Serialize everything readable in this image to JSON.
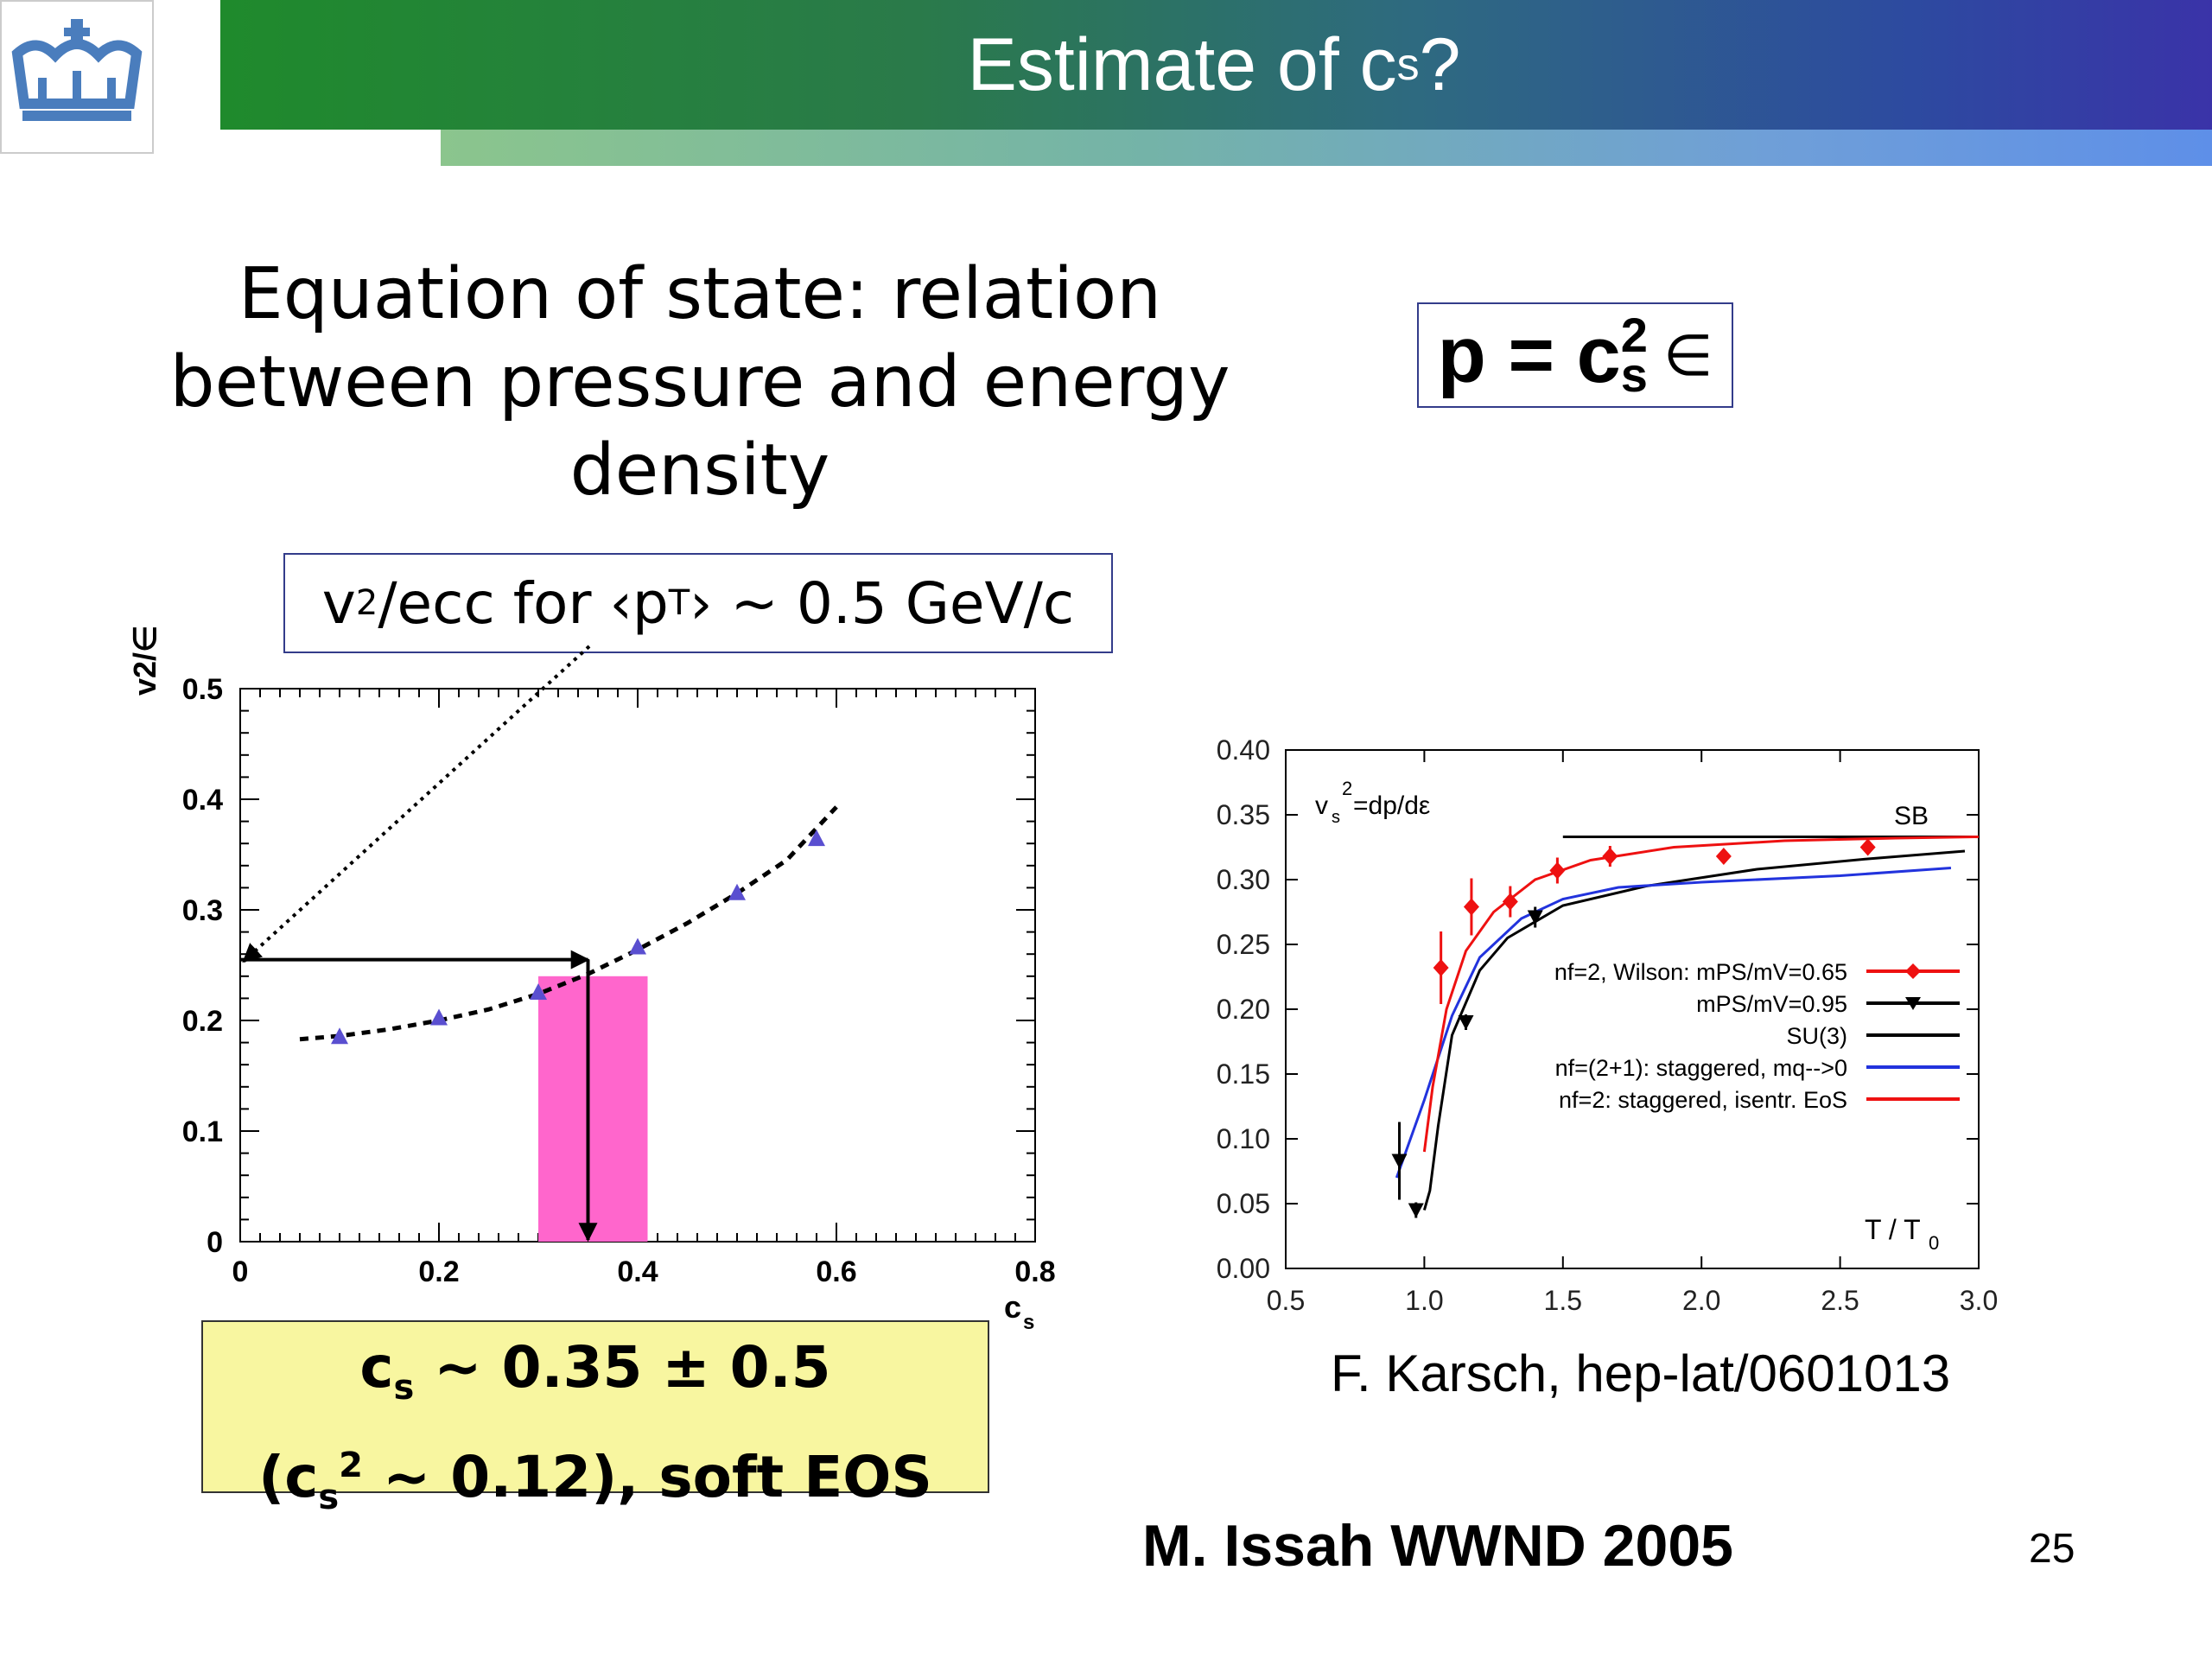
{
  "header": {
    "title_main": "Estimate of c",
    "title_sub": "s",
    "title_end": "?"
  },
  "heading": [
    "Equation of state: relation",
    "between pressure and energy",
    "density"
  ],
  "equation": {
    "lhs": "p = c",
    "sub": "s",
    "sup": "2",
    "rhs": "∈"
  },
  "v2box": {
    "part1": "v",
    "sub1": "2",
    "part2": "/ecc for ‹p",
    "sub2": "T",
    "part3": "› ~ 0.5 GeV/c"
  },
  "result": {
    "line1_a": "c",
    "line1_sub": "s",
    "line1_b": " ~ 0.35 ± 0.5",
    "line2_a": "(c",
    "line2_sub": "s",
    "line2_sup": "2",
    "line2_b": " ~ 0.12), soft EOS"
  },
  "credit": "F. Karsch, hep-lat/0601013",
  "footer": "M. Issah WWND 2005",
  "page_number": "25",
  "colors": {
    "pink_band": "#ff66cc",
    "marker_blue": "#5a4fd0",
    "red_series": "#ee1111",
    "blue_series": "#2233dd"
  },
  "chart_data": [
    {
      "type": "scatter",
      "ylabel": "v2/∈",
      "xlabel_main": "c",
      "xlabel_sub": "s",
      "xlim": [
        0,
        0.8
      ],
      "ylim": [
        0,
        0.5
      ],
      "xticks": [
        "0",
        "0.2",
        "0.4",
        "0.6",
        "0.8"
      ],
      "yticks": [
        "0",
        "0.1",
        "0.2",
        "0.3",
        "0.4",
        "0.5"
      ],
      "series": [
        {
          "x": [
            0.1,
            0.2,
            0.3,
            0.4,
            0.5,
            0.58
          ],
          "y": [
            0.185,
            0.202,
            0.225,
            0.266,
            0.315,
            0.364
          ]
        }
      ],
      "fit_curve": {
        "x": [
          0.06,
          0.1,
          0.15,
          0.2,
          0.25,
          0.3,
          0.35,
          0.4,
          0.45,
          0.5,
          0.55,
          0.6
        ],
        "y": [
          0.183,
          0.186,
          0.192,
          0.2,
          0.21,
          0.224,
          0.242,
          0.264,
          0.288,
          0.315,
          0.345,
          0.393
        ]
      },
      "band": {
        "x0": 0.3,
        "x1": 0.41,
        "y0": 0,
        "y1": 0.24
      },
      "arrow_level": {
        "y": 0.255,
        "x": 0.35
      }
    },
    {
      "type": "line",
      "annotation_main": "v",
      "annotation_sub": "s",
      "annotation_sup": "2",
      "annotation_rest": "=dp/dε",
      "sb_label": "SB",
      "xlabel": "T / T",
      "xlabel_sub": "0",
      "xlim": [
        0.5,
        3.0
      ],
      "ylim": [
        0.0,
        0.4
      ],
      "xticks": [
        "0.5",
        "1.0",
        "1.5",
        "2.0",
        "2.5",
        "3.0"
      ],
      "yticks": [
        "0.00",
        "0.05",
        "0.10",
        "0.15",
        "0.20",
        "0.25",
        "0.30",
        "0.35",
        "0.40"
      ],
      "sb_value": 0.333,
      "legend": [
        "n_f=2, Wilson: m_PS/m_V=0.65",
        "m_PS/m_V=0.95",
        "SU(3)",
        "n_f=(2+1): staggered, m_q-->0",
        "n_f=2: staggered, isentr. EoS"
      ],
      "series": [
        {
          "name": "n_f=2, Wilson: m_PS/m_V=0.65",
          "x": [
            1.06,
            1.17,
            1.31,
            1.48,
            1.67,
            2.08,
            2.6
          ],
          "y": [
            0.232,
            0.279,
            0.283,
            0.307,
            0.318,
            0.318,
            0.325
          ],
          "err": [
            0.028,
            0.022,
            0.012,
            0.01,
            0.008,
            0.004,
            0.004
          ]
        },
        {
          "name": "m_PS/m_V=0.95",
          "x": [
            0.91,
            0.97,
            1.15,
            1.4
          ],
          "y": [
            0.083,
            0.045,
            0.19,
            0.271
          ],
          "err": [
            0.03,
            0.006,
            0.006,
            0.008
          ]
        },
        {
          "name": "SU(3)",
          "x": [
            1.0,
            1.02,
            1.05,
            1.1,
            1.2,
            1.3,
            1.5,
            1.8,
            2.2,
            2.6,
            2.95
          ],
          "y": [
            0.045,
            0.06,
            0.11,
            0.18,
            0.23,
            0.255,
            0.28,
            0.295,
            0.308,
            0.316,
            0.322
          ]
        },
        {
          "name": "n_f=(2+1): staggered, m_q-->0",
          "x": [
            0.9,
            1.0,
            1.1,
            1.2,
            1.35,
            1.5,
            1.7,
            2.0,
            2.5,
            2.9
          ],
          "y": [
            0.07,
            0.13,
            0.195,
            0.24,
            0.27,
            0.285,
            0.294,
            0.298,
            0.303,
            0.309
          ]
        },
        {
          "name": "n_f=2: staggered, isentr. EoS",
          "x": [
            1.0,
            1.03,
            1.08,
            1.15,
            1.25,
            1.4,
            1.6,
            1.9,
            2.3,
            2.7,
            3.0
          ],
          "y": [
            0.09,
            0.14,
            0.2,
            0.245,
            0.275,
            0.3,
            0.315,
            0.325,
            0.33,
            0.332,
            0.333
          ]
        }
      ]
    }
  ]
}
